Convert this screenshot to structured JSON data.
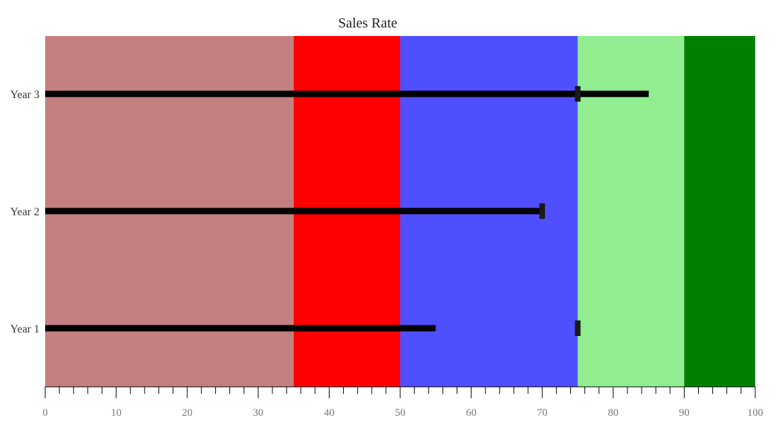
{
  "chart_data": {
    "type": "bullet",
    "title": "Sales Rate",
    "xlim": [
      0,
      100
    ],
    "major_ticks": [
      0,
      10,
      20,
      30,
      40,
      50,
      60,
      70,
      80,
      90,
      100
    ],
    "minor_tick_step": 2,
    "ranges": [
      {
        "from": 0,
        "to": 35,
        "color": "#c48080"
      },
      {
        "from": 35,
        "to": 50,
        "color": "#ff0000"
      },
      {
        "from": 50,
        "to": 75,
        "color": "#4f4fff"
      },
      {
        "from": 75,
        "to": 90,
        "color": "#90ee90"
      },
      {
        "from": 90,
        "to": 100,
        "color": "#008000"
      }
    ],
    "categories": [
      "Year 3",
      "Year 2",
      "Year 1"
    ],
    "values": [
      85,
      70,
      55
    ],
    "targets": [
      75,
      70,
      75
    ],
    "bar_color": "#000000",
    "target_color": "#1a1a1a"
  }
}
